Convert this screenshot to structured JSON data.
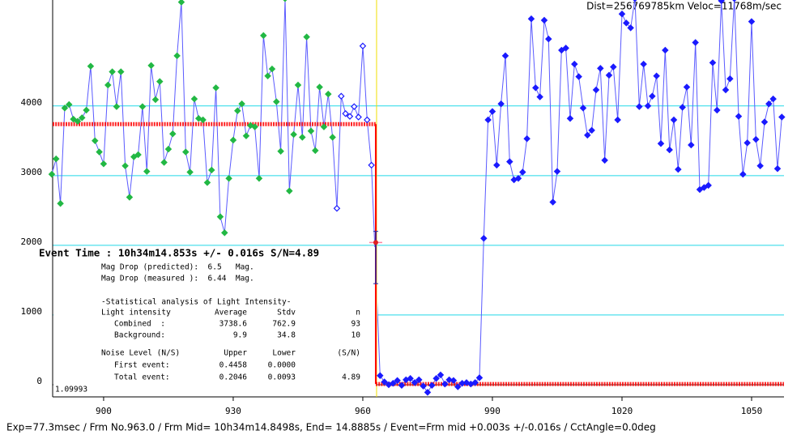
{
  "chart_data": {
    "type": "light-curve",
    "xlim": [
      888.2,
      1057.5
    ],
    "ylim": [
      -175,
      5520
    ],
    "xticks": [
      900,
      930,
      960,
      990,
      1020,
      1050
    ],
    "yticks": [
      0,
      1000,
      2000,
      3000,
      4000
    ],
    "grid": true,
    "grid_color": "#22d8e8",
    "line_color": "#5a5aff",
    "series": [
      {
        "color": "#22b844",
        "marker": "filled",
        "x": [
          888,
          889,
          890,
          891,
          892,
          893,
          894,
          895,
          896,
          897,
          898,
          899,
          900,
          901,
          902,
          903,
          904,
          905,
          906,
          907,
          908,
          909,
          910,
          911,
          912,
          913,
          914,
          915,
          916,
          917,
          918,
          919,
          920,
          921,
          922,
          923,
          924,
          925,
          926,
          927,
          928,
          929,
          930,
          931,
          932,
          933,
          934,
          935,
          936,
          937,
          938,
          939,
          940,
          941,
          942,
          943,
          944,
          945,
          946,
          947,
          948,
          949,
          950,
          951,
          952,
          953
        ],
        "values": [
          3020,
          3240,
          2600,
          3970,
          4020,
          3810,
          3780,
          3830,
          3940,
          4570,
          3500,
          3340,
          3170,
          4300,
          4490,
          3990,
          4490,
          3140,
          2690,
          3270,
          3300,
          3990,
          3060,
          4580,
          4090,
          4350,
          3190,
          3380,
          3600,
          4720,
          5490,
          3340,
          3050,
          4100,
          3820,
          3800,
          2900,
          3080,
          4260,
          2410,
          2180,
          2960,
          3510,
          3930,
          4030,
          3570,
          3720,
          3700,
          2960,
          5010,
          4430,
          4530,
          4060,
          3350,
          5540,
          2780,
          3590,
          4300,
          3550,
          4990,
          3640,
          3360,
          4270,
          3700,
          4170,
          3550
        ]
      },
      {
        "color": "#1a1aff",
        "marker": "open",
        "x": [
          954,
          955,
          956,
          957,
          958,
          959,
          960,
          961,
          962
        ],
        "values": [
          2530,
          4140,
          3890,
          3850,
          3990,
          3840,
          4860,
          3800,
          3150
        ]
      },
      {
        "color": "#1a1aff",
        "marker": "filled",
        "x": [
          964,
          965,
          966,
          967,
          968,
          969,
          970,
          971,
          972,
          973,
          974,
          975,
          976,
          977,
          978,
          979,
          980,
          981,
          982,
          983,
          984,
          985,
          986,
          987,
          988,
          989,
          990,
          991,
          992,
          993,
          994,
          995,
          996,
          997,
          998,
          999,
          1000,
          1001,
          1002,
          1003,
          1004,
          1005,
          1006,
          1007,
          1008,
          1009,
          1010,
          1011,
          1012,
          1013,
          1014,
          1015,
          1016,
          1017,
          1018,
          1019,
          1020,
          1021,
          1022,
          1023,
          1024,
          1025,
          1026,
          1027,
          1028,
          1029,
          1030,
          1031,
          1032,
          1033,
          1034,
          1035,
          1036,
          1037,
          1038,
          1039,
          1040,
          1041,
          1042,
          1043,
          1044,
          1045,
          1046,
          1047,
          1048,
          1049,
          1050,
          1051,
          1052,
          1053,
          1054,
          1055,
          1056,
          1057
        ],
        "values": [
          130,
          40,
          0,
          20,
          60,
          -10,
          70,
          90,
          30,
          70,
          -20,
          -110,
          -10,
          90,
          140,
          10,
          70,
          60,
          -30,
          20,
          30,
          10,
          30,
          100,
          2100,
          3800,
          3920,
          3150,
          4030,
          4720,
          3200,
          2940,
          2960,
          3050,
          3530,
          5250,
          4260,
          4130,
          5230,
          4960,
          2620,
          3060,
          4800,
          4830,
          3820,
          4600,
          4420,
          3970,
          3580,
          3650,
          4230,
          4540,
          3220,
          4440,
          4560,
          3800,
          5320,
          5190,
          5120,
          5540,
          3990,
          4600,
          4000,
          4140,
          4430,
          3460,
          4800,
          3370,
          3800,
          3090,
          3980,
          4270,
          3440,
          4910,
          2800,
          2830,
          2860,
          4620,
          3940,
          5510,
          4230,
          4390,
          5540,
          3850,
          3020,
          3470,
          5210,
          3520,
          3140,
          3770,
          4030,
          4100,
          3100,
          3840
        ]
      }
    ],
    "model": {
      "color": "#ff0000",
      "levels": [
        {
          "x": [
            888.2,
            963
          ],
          "value": 3738.6
        },
        {
          "x": [
            963,
            1057.5
          ],
          "value": 9.9
        }
      ]
    },
    "event": {
      "x": 963,
      "value": 2040,
      "range": [
        1450,
        2200
      ],
      "marker_color": "#e02020",
      "range_color": "#2020a0",
      "cursor_color": "#f0e000"
    },
    "dist_text": "Dist=256769785km Veloc=11768m/sec",
    "event_text": "Event Time : 10h34m14.853s  +/- 0.016s  S/N=4.89",
    "mag_lines": [
      "Mag Drop (predicted):  6.5   Mag.",
      "Mag Drop (measured ):  6.44  Mag."
    ],
    "stats_title": "-Statistical analysis of Light Intensity-",
    "stats_table": [
      [
        "Light intensity",
        "Average",
        "Stdv",
        "n"
      ],
      [
        "Combined  :",
        "3738.6",
        "762.9",
        "93"
      ],
      [
        "Background:",
        "9.9",
        "34.8",
        "10"
      ],
      [
        "Noise Level (N/S)",
        "Upper",
        "Lower",
        "(S/N)"
      ],
      [
        "First event:",
        "0.4458",
        "0.0000"
      ],
      [
        "Total event:",
        "0.2046",
        "0.0093",
        "4.89"
      ]
    ],
    "scale_text": "1.09993",
    "footer": "Exp=77.3msec / Frm No.963.0 / Frm Mid= 10h34m14.8498s,  End= 14.8885s / Event=Frm mid +0.003s +/-0.016s / CctAngle=0.0deg"
  }
}
